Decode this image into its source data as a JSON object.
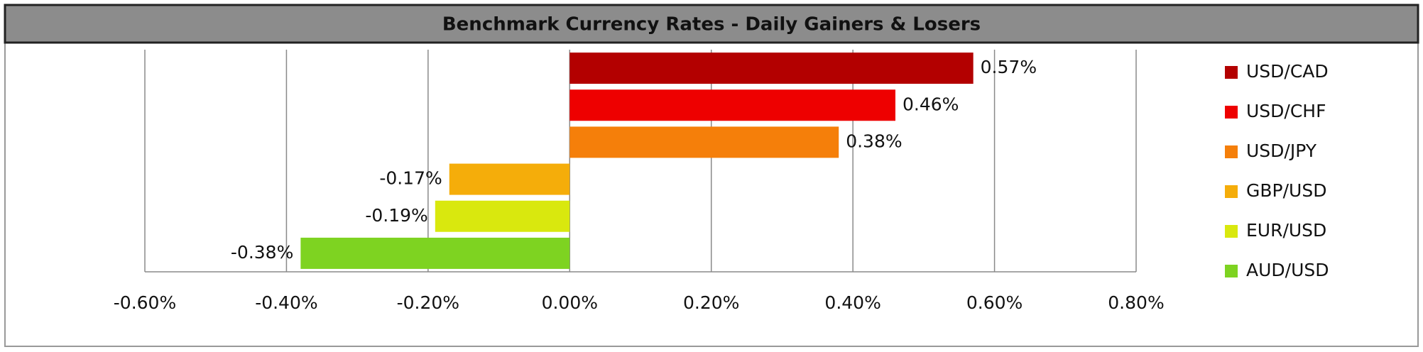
{
  "chart_data": {
    "type": "hbar",
    "title": "Benchmark Currency Rates - Daily Gainers & Losers",
    "series": [
      {
        "name": "USD/CAD",
        "color": "#b30000",
        "values": [
          0.57
        ],
        "value_labels": [
          "0.57%"
        ]
      },
      {
        "name": "USD/CHF",
        "color": "#ee0000",
        "values": [
          0.46
        ],
        "value_labels": [
          "0.46%"
        ]
      },
      {
        "name": "USD/JPY",
        "color": "#f57f0a",
        "values": [
          0.38
        ],
        "value_labels": [
          "0.38%"
        ]
      },
      {
        "name": "GBP/USD",
        "color": "#f5ad0a",
        "values": [
          -0.17
        ],
        "value_labels": [
          "-0.17%"
        ]
      },
      {
        "name": "EUR/USD",
        "color": "#d9e80e",
        "values": [
          -0.19
        ],
        "value_labels": [
          "-0.19%"
        ]
      },
      {
        "name": "AUD/USD",
        "color": "#7ed321",
        "values": [
          -0.38
        ],
        "value_labels": [
          "-0.38%"
        ]
      }
    ],
    "xlim": [
      -0.6,
      0.8
    ],
    "xticks": [
      {
        "value": -0.6,
        "label": "-0.60%"
      },
      {
        "value": -0.4,
        "label": "-0.40%"
      },
      {
        "value": -0.2,
        "label": "-0.20%"
      },
      {
        "value": 0,
        "label": "0.00%"
      },
      {
        "value": 0.2,
        "label": "0.20%"
      },
      {
        "value": 0.4,
        "label": "0.40%"
      },
      {
        "value": 0.6,
        "label": "0.60%"
      },
      {
        "value": 0.8,
        "label": "0.80%"
      }
    ],
    "grid": true,
    "legend": "right"
  }
}
